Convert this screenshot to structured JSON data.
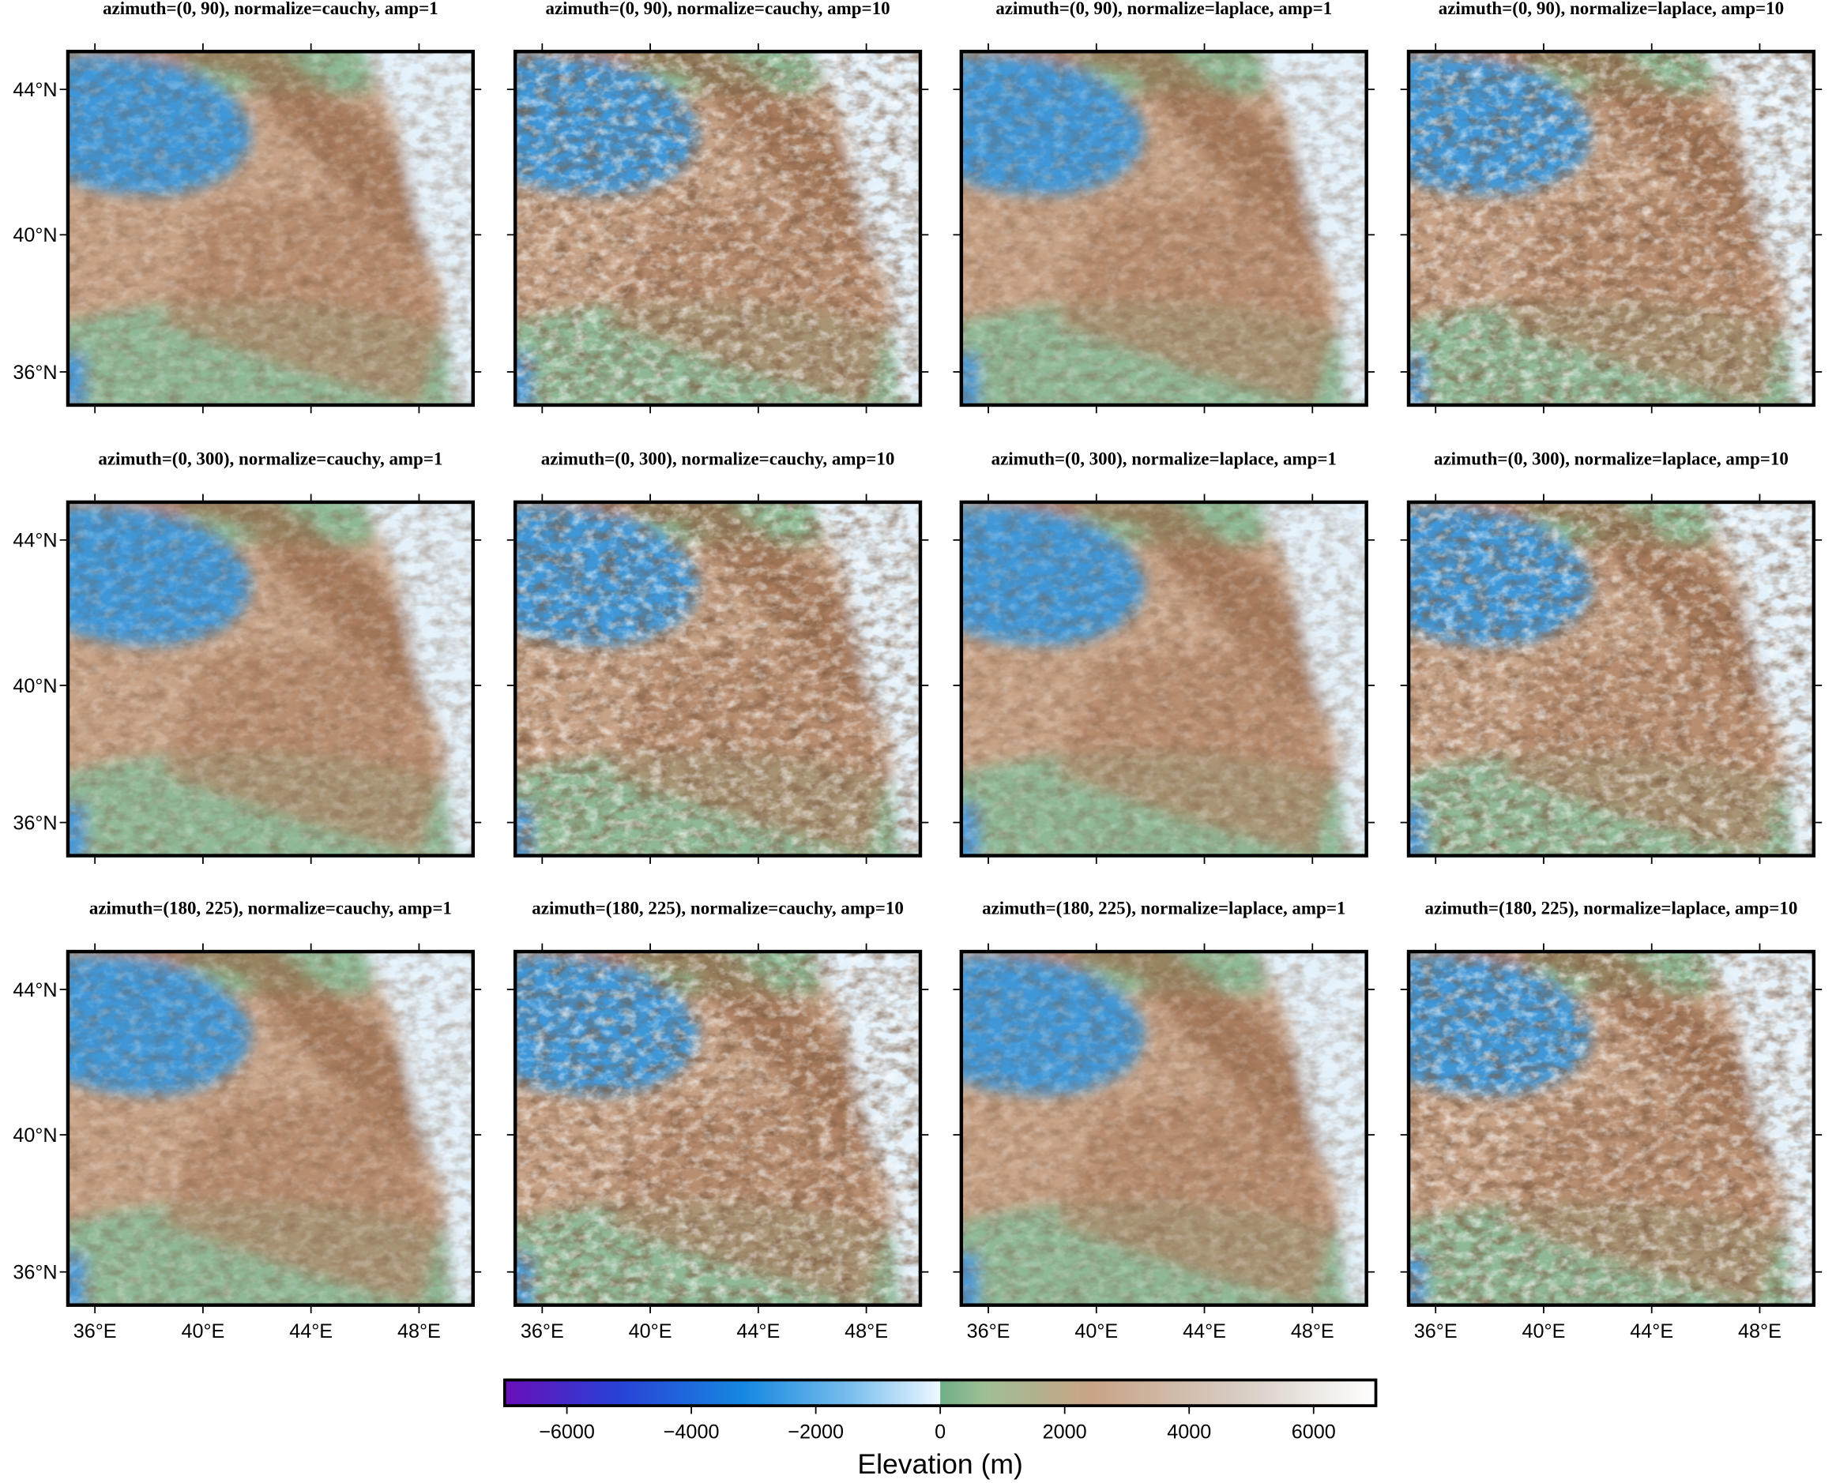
{
  "panels": [
    {
      "title": "azimuth=(0, 90), normalize=cauchy, amp=1"
    },
    {
      "title": "azimuth=(0, 90), normalize=cauchy, amp=10"
    },
    {
      "title": "azimuth=(0, 90), normalize=laplace, amp=1"
    },
    {
      "title": "azimuth=(0, 90), normalize=laplace, amp=10"
    },
    {
      "title": "azimuth=(0, 300), normalize=cauchy, amp=1"
    },
    {
      "title": "azimuth=(0, 300), normalize=cauchy, amp=10"
    },
    {
      "title": "azimuth=(0, 300), normalize=laplace, amp=1"
    },
    {
      "title": "azimuth=(0, 300), normalize=laplace, amp=10"
    },
    {
      "title": "azimuth=(180, 225), normalize=cauchy, amp=1"
    },
    {
      "title": "azimuth=(180, 225), normalize=cauchy, amp=10"
    },
    {
      "title": "azimuth=(180, 225), normalize=laplace, amp=1"
    },
    {
      "title": "azimuth=(180, 225), normalize=laplace, amp=10"
    }
  ],
  "region": {
    "lon": [
      35,
      50
    ],
    "lat": [
      35,
      45
    ]
  },
  "lat_ticks": [
    {
      "value": 44,
      "label": "44°N"
    },
    {
      "value": 40,
      "label": "40°N"
    },
    {
      "value": 36,
      "label": "36°N"
    }
  ],
  "lon_ticks": [
    {
      "value": 36,
      "label": "36°E"
    },
    {
      "value": 40,
      "label": "40°E"
    },
    {
      "value": 44,
      "label": "44°E"
    },
    {
      "value": 48,
      "label": "48°E"
    }
  ],
  "colorbar": {
    "label": "Elevation (m)",
    "range": [
      -7000,
      7000
    ],
    "ticks": [
      {
        "value": -6000,
        "label": "−6000"
      },
      {
        "value": -4000,
        "label": "−4000"
      },
      {
        "value": -2000,
        "label": "−2000"
      },
      0,
      2000,
      4000,
      6000
    ]
  }
}
